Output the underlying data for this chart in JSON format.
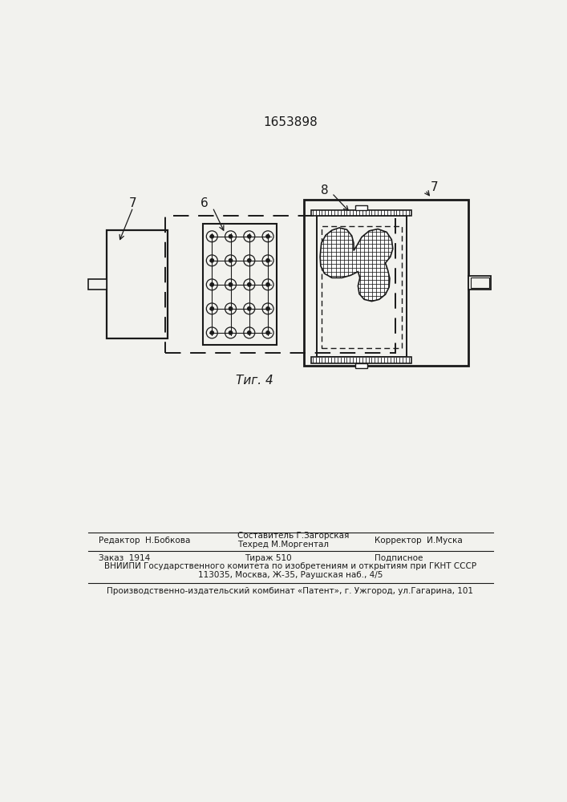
{
  "title": "1653898",
  "fig_label": "Τиг. 4",
  "bg_color": "#f2f2ee",
  "line_color": "#1a1a1a",
  "footer_editor": "Редактор  Н.Бобкова",
  "footer_comp1": "Составитель Г.Загорская",
  "footer_tech": "Техред М.Моргентал",
  "footer_corr": "Корректор  И.Муска",
  "footer_order": "Заказ  1914",
  "footer_circ": "Тираж 510",
  "footer_sub": "Подписное",
  "footer_vnipi": "ВНИИПИ Государственного комитета по изобретениям и открытиям при ГКНТ СССР",
  "footer_addr": "113035, Москва, Ж-35, Раушская наб., 4/5",
  "footer_plant": "Производственно-издательский комбинат «Патент», г. Ужгород, ул.Гагарина, 101"
}
